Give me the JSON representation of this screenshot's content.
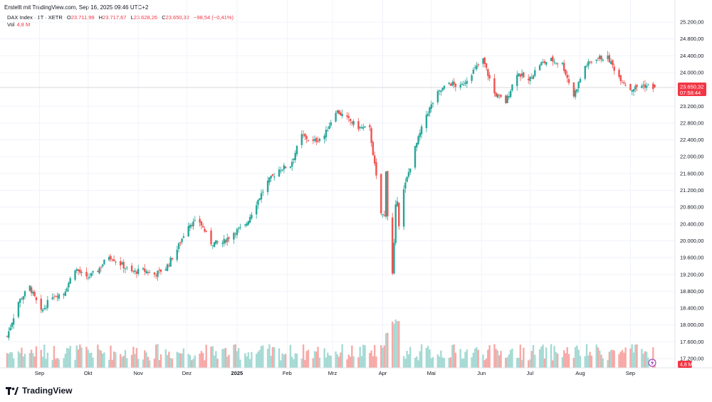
{
  "header": {
    "created": "Erstellt mit TradingView.com, Sep 16, 2025 09:46 UTC+2",
    "symbol": "DAX Index · 1T · XETR",
    "open_label": "O",
    "open": "23.711,99",
    "high_label": "H",
    "high": "23.717,67",
    "low_label": "L",
    "low": "23.628,26",
    "close_label": "C",
    "close": "23.650,32",
    "change": "−98,54 (−0,41%)",
    "vol_label": "Vol",
    "vol": "4,8 M"
  },
  "price_badge": {
    "price": "23.650,32",
    "countdown": "07:58:44"
  },
  "vol_badge": "4,8 M",
  "logo": "TradingView",
  "colors": {
    "up": "#26a69a",
    "down": "#ef5350",
    "up_vol": "#a6dad4",
    "down_vol": "#f7a9a7",
    "badge": "#f23645"
  },
  "chart_data": {
    "type": "candlestick",
    "y_ticks": [
      "25.200,00",
      "24.800,00",
      "24.400,00",
      "24.000,00",
      "23.200,00",
      "22.800,00",
      "22.400,00",
      "22.000,00",
      "21.600,00",
      "21.200,00",
      "20.800,00",
      "20.400,00",
      "20.000,00",
      "19.600,00",
      "19.200,00",
      "18.800,00",
      "18.400,00",
      "18.000,00",
      "17.600,00",
      "17.200,00"
    ],
    "x_ticks": [
      {
        "label": "Sep",
        "date": "2024-09-01"
      },
      {
        "label": "Okt",
        "date": "2024-10-01"
      },
      {
        "label": "Nov",
        "date": "2024-11-01"
      },
      {
        "label": "Dez",
        "date": "2024-12-01"
      },
      {
        "label": "2025",
        "date": "2025-01-01",
        "bold": true
      },
      {
        "label": "Feb",
        "date": "2025-02-01"
      },
      {
        "label": "Mrz",
        "date": "2025-03-01"
      },
      {
        "label": "Apr",
        "date": "2025-04-01"
      },
      {
        "label": "Mai",
        "date": "2025-05-01"
      },
      {
        "label": "Jun",
        "date": "2025-06-01"
      },
      {
        "label": "Jul",
        "date": "2025-07-01"
      },
      {
        "label": "Aug",
        "date": "2025-08-01"
      },
      {
        "label": "Sep",
        "date": "2025-09-01"
      }
    ],
    "last_price": 23650.32,
    "weekly_closes": [
      {
        "week_of": "2024-08-12",
        "close": 17730
      },
      {
        "week_of": "2024-08-19",
        "close": 18550
      },
      {
        "week_of": "2024-08-26",
        "close": 18900
      },
      {
        "week_of": "2024-09-02",
        "close": 18300
      },
      {
        "week_of": "2024-09-09",
        "close": 18700
      },
      {
        "week_of": "2024-09-16",
        "close": 18750
      },
      {
        "week_of": "2024-09-23",
        "close": 19350
      },
      {
        "week_of": "2024-09-30",
        "close": 19100
      },
      {
        "week_of": "2024-10-07",
        "close": 19300
      },
      {
        "week_of": "2024-10-14",
        "close": 19650
      },
      {
        "week_of": "2024-10-21",
        "close": 19450
      },
      {
        "week_of": "2024-10-28",
        "close": 19250
      },
      {
        "week_of": "2024-11-04",
        "close": 19300
      },
      {
        "week_of": "2024-11-11",
        "close": 19200
      },
      {
        "week_of": "2024-11-18",
        "close": 19350
      },
      {
        "week_of": "2024-11-25",
        "close": 19800
      },
      {
        "week_of": "2024-12-02",
        "close": 20400
      },
      {
        "week_of": "2024-12-09",
        "close": 20450
      },
      {
        "week_of": "2024-12-16",
        "close": 19950
      },
      {
        "week_of": "2024-12-23",
        "close": 19950
      },
      {
        "week_of": "2024-12-30",
        "close": 20200
      },
      {
        "week_of": "2025-01-06",
        "close": 20350
      },
      {
        "week_of": "2025-01-13",
        "close": 20900
      },
      {
        "week_of": "2025-01-20",
        "close": 21400
      },
      {
        "week_of": "2025-01-27",
        "close": 21700
      },
      {
        "week_of": "2025-02-03",
        "close": 21800
      },
      {
        "week_of": "2025-02-10",
        "close": 22500
      },
      {
        "week_of": "2025-02-17",
        "close": 22350
      },
      {
        "week_of": "2025-02-24",
        "close": 22500
      },
      {
        "week_of": "2025-03-03",
        "close": 23100
      },
      {
        "week_of": "2025-03-10",
        "close": 22900
      },
      {
        "week_of": "2025-03-17",
        "close": 22700
      },
      {
        "week_of": "2025-03-24",
        "close": 22650
      },
      {
        "week_of": "2025-03-31",
        "close": 20650
      },
      {
        "week_of": "2025-04-07",
        "close": 20400
      },
      {
        "week_of": "2025-04-14",
        "close": 21200
      },
      {
        "week_of": "2025-04-21",
        "close": 22200
      },
      {
        "week_of": "2025-04-28",
        "close": 23000
      },
      {
        "week_of": "2025-05-05",
        "close": 23500
      },
      {
        "week_of": "2025-05-12",
        "close": 23750
      },
      {
        "week_of": "2025-05-19",
        "close": 23650
      },
      {
        "week_of": "2025-05-26",
        "close": 24000
      },
      {
        "week_of": "2025-06-02",
        "close": 24300
      },
      {
        "week_of": "2025-06-09",
        "close": 23500
      },
      {
        "week_of": "2025-06-16",
        "close": 23300
      },
      {
        "week_of": "2025-06-23",
        "close": 24000
      },
      {
        "week_of": "2025-06-30",
        "close": 23800
      },
      {
        "week_of": "2025-07-07",
        "close": 24200
      },
      {
        "week_of": "2025-07-14",
        "close": 24300
      },
      {
        "week_of": "2025-07-21",
        "close": 24200
      },
      {
        "week_of": "2025-07-28",
        "close": 23450
      },
      {
        "week_of": "2025-08-04",
        "close": 24150
      },
      {
        "week_of": "2025-08-11",
        "close": 24350
      },
      {
        "week_of": "2025-08-18",
        "close": 24350
      },
      {
        "week_of": "2025-08-25",
        "close": 23900
      },
      {
        "week_of": "2025-09-01",
        "close": 23600
      },
      {
        "week_of": "2025-09-08",
        "close": 23700
      },
      {
        "week_of": "2025-09-15",
        "close": 23650
      }
    ]
  }
}
